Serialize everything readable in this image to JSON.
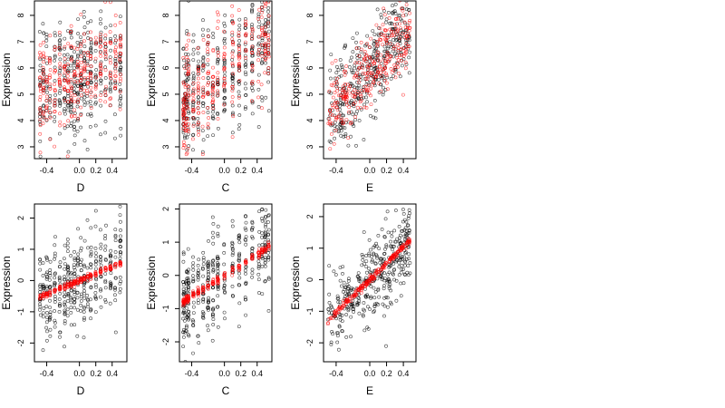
{
  "figure": {
    "background": "#ffffff",
    "point_colors": {
      "observed": "#000000",
      "fitted": "#ff0000"
    }
  },
  "chart_data": [
    {
      "type": "scatter",
      "panel": "top-left",
      "xlabel": "D",
      "ylabel": "Expression",
      "xlim": [
        -0.55,
        0.58
      ],
      "ylim": [
        2.55,
        8.55
      ],
      "xticks": [
        {
          "v": -0.4,
          "label": "-0.4"
        },
        {
          "v": 0.0,
          "label": "0.0"
        },
        {
          "v": 0.2,
          "label": "0.2"
        },
        {
          "v": 0.4,
          "label": "0.4"
        }
      ],
      "yticks": [
        {
          "v": 3,
          "label": "3"
        },
        {
          "v": 4,
          "label": "4"
        },
        {
          "v": 5,
          "label": "5"
        },
        {
          "v": 6,
          "label": "6"
        },
        {
          "v": 7,
          "label": "7"
        },
        {
          "v": 8,
          "label": "8"
        }
      ],
      "x_columns": [
        -0.48,
        -0.44,
        -0.4,
        -0.36,
        -0.3,
        -0.24,
        -0.18,
        -0.14,
        -0.1,
        -0.06,
        -0.02,
        0.02,
        0.06,
        0.1,
        0.14,
        0.2,
        0.26,
        0.32,
        0.38,
        0.44,
        0.5
      ],
      "series": [
        {
          "color": "#000000",
          "trend": {
            "intercept": 5.7,
            "slope": 0.9
          },
          "spread": 1.2,
          "count": 380,
          "seed": 11
        },
        {
          "color": "#ff0000",
          "trend": {
            "intercept": 5.7,
            "slope": 0.9
          },
          "spread": 0.95,
          "count": 300,
          "seed": 12
        }
      ]
    },
    {
      "type": "scatter",
      "panel": "top-middle",
      "xlabel": "C",
      "ylabel": "Expression",
      "xlim": [
        -0.55,
        0.58
      ],
      "ylim": [
        2.55,
        8.55
      ],
      "xticks": [
        {
          "v": -0.4,
          "label": "-0.4"
        },
        {
          "v": 0.0,
          "label": "0.0"
        },
        {
          "v": 0.2,
          "label": "0.2"
        },
        {
          "v": 0.4,
          "label": "0.4"
        }
      ],
      "yticks": [
        {
          "v": 3,
          "label": "3"
        },
        {
          "v": 4,
          "label": "4"
        },
        {
          "v": 5,
          "label": "5"
        },
        {
          "v": 6,
          "label": "6"
        },
        {
          "v": 7,
          "label": "7"
        },
        {
          "v": 8,
          "label": "8"
        }
      ],
      "x_columns": [
        -0.5,
        -0.48,
        -0.46,
        -0.44,
        -0.38,
        -0.32,
        -0.26,
        -0.2,
        -0.14,
        -0.08,
        0.0,
        0.1,
        0.18,
        0.26,
        0.34,
        0.42,
        0.46,
        0.5,
        0.54
      ],
      "series": [
        {
          "color": "#000000",
          "trend": {
            "intercept": 5.8,
            "slope": 2.3
          },
          "spread": 1.2,
          "count": 380,
          "seed": 21
        },
        {
          "color": "#ff0000",
          "trend": {
            "intercept": 5.8,
            "slope": 2.3
          },
          "spread": 1.0,
          "count": 300,
          "seed": 22
        }
      ]
    },
    {
      "type": "scatter",
      "panel": "top-right",
      "xlabel": "E",
      "ylabel": "Expression",
      "xlim": [
        -0.55,
        0.55
      ],
      "ylim": [
        2.55,
        8.55
      ],
      "xticks": [
        {
          "v": -0.4,
          "label": "-0.4"
        },
        {
          "v": 0.0,
          "label": "0.0"
        },
        {
          "v": 0.2,
          "label": "0.2"
        },
        {
          "v": 0.4,
          "label": "0.4"
        }
      ],
      "yticks": [
        {
          "v": 3,
          "label": "3"
        },
        {
          "v": 4,
          "label": "4"
        },
        {
          "v": 5,
          "label": "5"
        },
        {
          "v": 6,
          "label": "6"
        },
        {
          "v": 7,
          "label": "7"
        },
        {
          "v": 8,
          "label": "8"
        }
      ],
      "x_columns": [],
      "series": [
        {
          "color": "#000000",
          "trend": {
            "intercept": 5.9,
            "slope": 3.3
          },
          "spread": 0.9,
          "count": 380,
          "seed": 31
        },
        {
          "color": "#ff0000",
          "trend": {
            "intercept": 5.9,
            "slope": 3.3
          },
          "spread": 0.75,
          "count": 300,
          "seed": 32
        }
      ]
    },
    {
      "type": "scatter",
      "panel": "bottom-left",
      "xlabel": "D",
      "ylabel": "Expression",
      "xlim": [
        -0.55,
        0.58
      ],
      "ylim": [
        -2.6,
        2.45
      ],
      "xticks": [
        {
          "v": -0.4,
          "label": "-0.4"
        },
        {
          "v": 0.0,
          "label": "0.0"
        },
        {
          "v": 0.2,
          "label": "0.2"
        },
        {
          "v": 0.4,
          "label": "0.4"
        }
      ],
      "yticks": [
        {
          "v": -2,
          "label": "-2"
        },
        {
          "v": -1,
          "label": "-1"
        },
        {
          "v": 0,
          "label": "0"
        },
        {
          "v": 1,
          "label": "1"
        },
        {
          "v": 2,
          "label": "2"
        }
      ],
      "x_columns": [
        -0.48,
        -0.44,
        -0.4,
        -0.36,
        -0.3,
        -0.24,
        -0.18,
        -0.14,
        -0.1,
        -0.06,
        -0.02,
        0.02,
        0.06,
        0.1,
        0.14,
        0.2,
        0.26,
        0.32,
        0.38,
        0.44,
        0.5
      ],
      "series": [
        {
          "color": "#000000",
          "trend": {
            "intercept": 0.0,
            "slope": 1.1
          },
          "spread": 0.75,
          "count": 380,
          "seed": 41
        },
        {
          "color": "#ff0000",
          "trend": {
            "intercept": 0.0,
            "slope": 1.1
          },
          "spread": 0.05,
          "count": 220,
          "seed": 42
        }
      ]
    },
    {
      "type": "scatter",
      "panel": "bottom-middle",
      "xlabel": "C",
      "ylabel": "Expression",
      "xlim": [
        -0.55,
        0.58
      ],
      "ylim": [
        -2.6,
        2.15
      ],
      "xticks": [
        {
          "v": -0.4,
          "label": "-0.4"
        },
        {
          "v": 0.0,
          "label": "0.0"
        },
        {
          "v": 0.2,
          "label": "0.2"
        },
        {
          "v": 0.4,
          "label": "0.4"
        }
      ],
      "yticks": [
        {
          "v": -2,
          "label": "-2"
        },
        {
          "v": -1,
          "label": "-1"
        },
        {
          "v": 0,
          "label": "0"
        },
        {
          "v": 1,
          "label": "1"
        },
        {
          "v": 2,
          "label": "2"
        }
      ],
      "x_columns": [
        -0.5,
        -0.48,
        -0.46,
        -0.44,
        -0.38,
        -0.32,
        -0.26,
        -0.2,
        -0.14,
        -0.08,
        0.0,
        0.1,
        0.18,
        0.26,
        0.34,
        0.42,
        0.46,
        0.5,
        0.54
      ],
      "series": [
        {
          "color": "#000000",
          "trend": {
            "intercept": 0.0,
            "slope": 1.55
          },
          "spread": 0.75,
          "count": 380,
          "seed": 51
        },
        {
          "color": "#ff0000",
          "trend": {
            "intercept": 0.0,
            "slope": 1.55
          },
          "spread": 0.06,
          "count": 220,
          "seed": 52
        }
      ]
    },
    {
      "type": "scatter",
      "panel": "bottom-right",
      "xlabel": "E",
      "ylabel": "Expression",
      "xlim": [
        -0.55,
        0.55
      ],
      "ylim": [
        -2.6,
        2.4
      ],
      "xticks": [
        {
          "v": -0.4,
          "label": "-0.4"
        },
        {
          "v": 0.0,
          "label": "0.0"
        },
        {
          "v": 0.2,
          "label": "0.2"
        },
        {
          "v": 0.4,
          "label": "0.4"
        }
      ],
      "yticks": [
        {
          "v": -2,
          "label": "-2"
        },
        {
          "v": -1,
          "label": "-1"
        },
        {
          "v": 0,
          "label": "0"
        },
        {
          "v": 1,
          "label": "1"
        },
        {
          "v": 2,
          "label": "2"
        }
      ],
      "x_columns": [],
      "series": [
        {
          "color": "#000000",
          "trend": {
            "intercept": 0.0,
            "slope": 2.6
          },
          "spread": 0.65,
          "count": 380,
          "seed": 61
        },
        {
          "color": "#ff0000",
          "trend": {
            "intercept": 0.0,
            "slope": 2.6
          },
          "spread": 0.05,
          "count": 220,
          "seed": 62
        }
      ]
    }
  ]
}
